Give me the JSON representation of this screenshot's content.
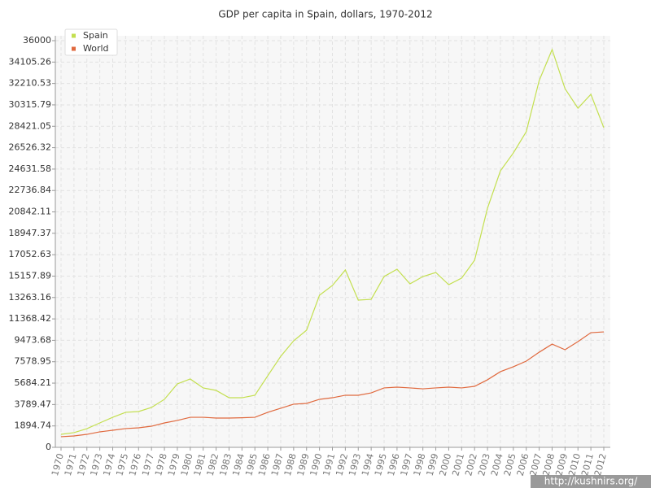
{
  "chart_data": {
    "type": "line",
    "title": "GDP per capita in Spain, dollars, 1970-2012",
    "categories": [
      "1970",
      "1971",
      "1972",
      "1973",
      "1974",
      "1975",
      "1976",
      "1977",
      "1978",
      "1979",
      "1980",
      "1981",
      "1982",
      "1983",
      "1984",
      "1985",
      "1986",
      "1987",
      "1988",
      "1989",
      "1990",
      "1991",
      "1992",
      "1993",
      "1994",
      "1995",
      "1996",
      "1997",
      "1998",
      "1999",
      "2000",
      "2001",
      "2002",
      "2003",
      "2004",
      "2005",
      "2006",
      "2007",
      "2008",
      "2009",
      "2010",
      "2011",
      "2012"
    ],
    "series": [
      {
        "name": "Spain",
        "color": "#c3df4f",
        "values": [
          1150,
          1300,
          1650,
          2160,
          2660,
          3100,
          3170,
          3530,
          4250,
          5620,
          6050,
          5260,
          5040,
          4390,
          4390,
          4610,
          6340,
          8060,
          9430,
          10370,
          13460,
          14330,
          15700,
          13030,
          13100,
          15120,
          15770,
          14470,
          15120,
          15480,
          14400,
          14980,
          16560,
          21170,
          24480,
          26060,
          27940,
          32470,
          35210,
          31750,
          30020,
          31250,
          28300
        ]
      },
      {
        "name": "World",
        "color": "#e0693e",
        "values": [
          940,
          1010,
          1150,
          1370,
          1510,
          1660,
          1730,
          1870,
          2160,
          2380,
          2660,
          2660,
          2590,
          2590,
          2620,
          2660,
          3100,
          3460,
          3820,
          3890,
          4250,
          4390,
          4610,
          4610,
          4820,
          5260,
          5330,
          5260,
          5180,
          5260,
          5330,
          5260,
          5400,
          5980,
          6700,
          7130,
          7630,
          8420,
          9140,
          8640,
          9360,
          10150,
          10220
        ]
      }
    ],
    "ylim": [
      0,
      36000
    ],
    "yticks": [
      0,
      1894.74,
      3789.47,
      5684.21,
      7578.95,
      9473.68,
      11368.42,
      13263.16,
      15157.89,
      17052.63,
      18947.37,
      20842.11,
      22736.84,
      24631.58,
      26526.32,
      28421.05,
      30315.79,
      32210.53,
      34105.26,
      36000
    ],
    "grid": true,
    "legend": "top-left",
    "watermark": "http://kushnirs.org/"
  }
}
